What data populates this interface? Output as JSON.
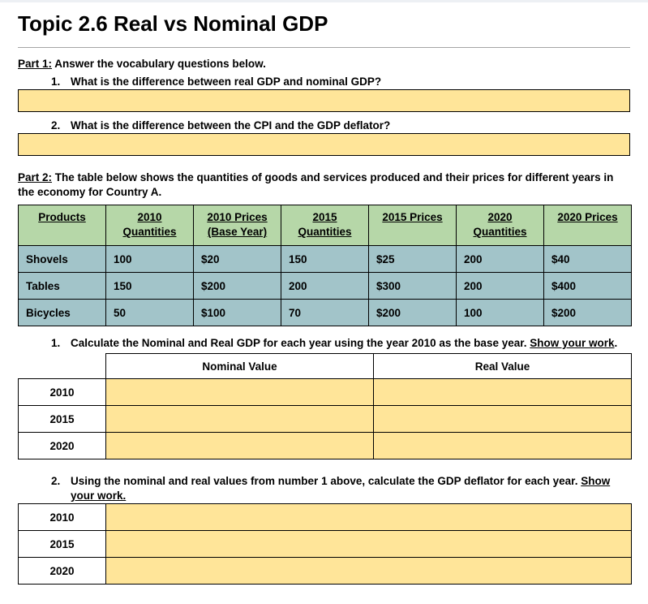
{
  "page": {
    "title": "Topic 2.6 Real vs Nominal GDP"
  },
  "part1": {
    "label": "Part 1:",
    "intro": " Answer the vocabulary questions below.",
    "questions": [
      {
        "number": "1.",
        "text": "What is the difference between real GDP and nominal GDP?"
      },
      {
        "number": "2.",
        "text": "What is the difference between the CPI and the GDP deflator?"
      }
    ]
  },
  "part2": {
    "label": "Part 2:",
    "intro": " The table below shows the quantities of goods and services produced and their prices for different years in the economy for Country A.",
    "products_table": {
      "headers": [
        "Products",
        "2010 Quantities",
        "2010 Prices (Base Year)",
        "2015 Quantities",
        "2015 Prices",
        "2020 Quantities",
        "2020 Prices"
      ],
      "rows": [
        {
          "cells": [
            "Shovels",
            "100",
            "$20",
            "150",
            "$25",
            "200",
            "$40"
          ]
        },
        {
          "cells": [
            "Tables",
            "150",
            "$200",
            "200",
            "$300",
            "200",
            "$400"
          ]
        },
        {
          "cells": [
            "Bicycles",
            "50",
            "$100",
            "70",
            "$200",
            "100",
            "$200"
          ]
        }
      ]
    },
    "questions": [
      {
        "number": "1.",
        "text": "Calculate the Nominal and Real GDP for each year using the year 2010 as the base year. ",
        "underlined": "Show your work",
        "tail": "."
      },
      {
        "number": "2.",
        "text": "Using the nominal and real values from number 1 above, calculate the GDP deflator for each year. ",
        "underlined": "Show your work.",
        "tail": ""
      }
    ],
    "gdp_table": {
      "col_headers": [
        "Nominal Value",
        "Real Value"
      ],
      "years": [
        "2010",
        "2015",
        "2020"
      ]
    },
    "deflator_table": {
      "years": [
        "2010",
        "2015",
        "2020"
      ]
    }
  },
  "colors": {
    "header_green": "#b6d7a8",
    "row_blue": "#a2c4c9",
    "answer_yellow": "#ffe599"
  }
}
